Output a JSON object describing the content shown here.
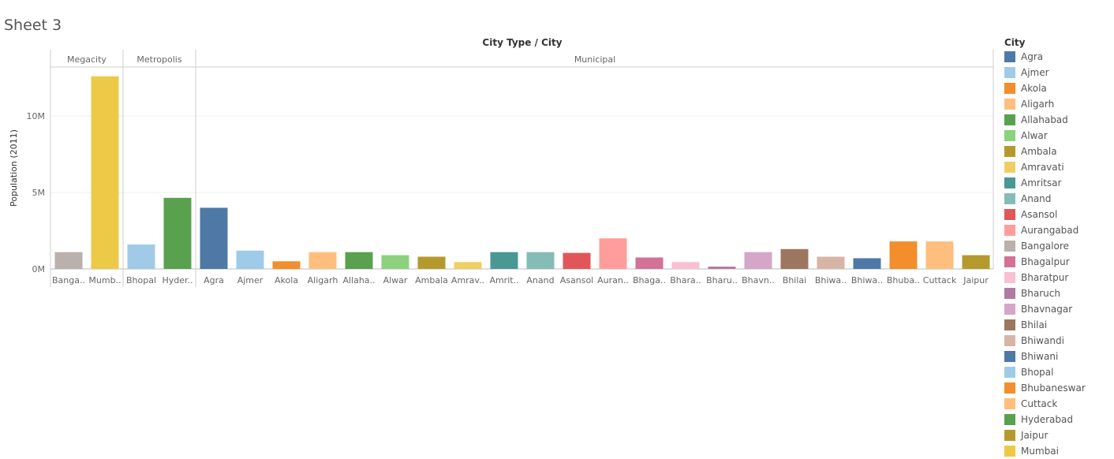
{
  "sheet": {
    "title": "Sheet 3"
  },
  "chart_data": {
    "type": "bar",
    "title": "",
    "header": "City Type / City",
    "ylabel": "Population (2011)",
    "ylim": [
      0,
      13000000
    ],
    "yticks": [
      0,
      5000000,
      10000000
    ],
    "ytick_labels": [
      "0M",
      "5M",
      "10M"
    ],
    "gridlines": true,
    "legend": {
      "title": "City",
      "placement": "right"
    },
    "groups": [
      {
        "name": "Megacity",
        "bars": [
          {
            "label": "Banga..",
            "city": "Bangalore",
            "value": 1100000,
            "color": "#bab0ac"
          },
          {
            "label": "Mumb..",
            "city": "Mumbai",
            "value": 12600000,
            "color": "#edc948"
          }
        ]
      },
      {
        "name": "Metropolis",
        "bars": [
          {
            "label": "Bhopal",
            "city": "Bhopal",
            "value": 1600000,
            "color": "#a0cbe8"
          },
          {
            "label": "Hyder..",
            "city": "Hyderabad",
            "value": 4650000,
            "color": "#59a14f"
          }
        ]
      },
      {
        "name": "Municipal",
        "bars": [
          {
            "label": "Agra",
            "city": "Agra",
            "value": 4000000,
            "color": "#4e79a7"
          },
          {
            "label": "Ajmer",
            "city": "Ajmer",
            "value": 1200000,
            "color": "#a0cbe8"
          },
          {
            "label": "Akola",
            "city": "Akola",
            "value": 500000,
            "color": "#f28e2b"
          },
          {
            "label": "Aligarh",
            "city": "Aligarh",
            "value": 1100000,
            "color": "#ffbe7d"
          },
          {
            "label": "Allaha..",
            "city": "Allahabad",
            "value": 1100000,
            "color": "#59a14f"
          },
          {
            "label": "Alwar",
            "city": "Alwar",
            "value": 900000,
            "color": "#8cd17d"
          },
          {
            "label": "Ambala",
            "city": "Ambala",
            "value": 800000,
            "color": "#b6992d"
          },
          {
            "label": "Amrav..",
            "city": "Amravati",
            "value": 450000,
            "color": "#f1ce63"
          },
          {
            "label": "Amrit..",
            "city": "Amritsar",
            "value": 1100000,
            "color": "#499894"
          },
          {
            "label": "Anand",
            "city": "Anand",
            "value": 1100000,
            "color": "#86bcb6"
          },
          {
            "label": "Asansol",
            "city": "Asansol",
            "value": 1050000,
            "color": "#e15759"
          },
          {
            "label": "Auran..",
            "city": "Aurangabad",
            "value": 2000000,
            "color": "#ff9d9a"
          },
          {
            "label": "Bhaga..",
            "city": "Bhagalpur",
            "value": 750000,
            "color": "#d37295"
          },
          {
            "label": "Bhara..",
            "city": "Bharatpur",
            "value": 450000,
            "color": "#fabfd2"
          },
          {
            "label": "Bharu..",
            "city": "Bharuch",
            "value": 150000,
            "color": "#b07aa1"
          },
          {
            "label": "Bhavn..",
            "city": "Bhavnagar",
            "value": 1100000,
            "color": "#d4a6c8"
          },
          {
            "label": "Bhilai",
            "city": "Bhilai",
            "value": 1300000,
            "color": "#9d7660"
          },
          {
            "label": "Bhiwa..",
            "city": "Bhiwandi",
            "value": 800000,
            "color": "#d7b5a6"
          },
          {
            "label": "Bhiwa..",
            "city": "Bhiwani",
            "value": 700000,
            "color": "#4e79a7"
          },
          {
            "label": "Bhuba..",
            "city": "Bhubaneswar",
            "value": 1800000,
            "color": "#f28e2b"
          },
          {
            "label": "Cuttack",
            "city": "Cuttack",
            "value": 1800000,
            "color": "#ffbe7d"
          },
          {
            "label": "Jaipur",
            "city": "Jaipur",
            "value": 900000,
            "color": "#b6992d"
          }
        ]
      }
    ],
    "legend_entries": [
      {
        "name": "Agra",
        "color": "#4e79a7"
      },
      {
        "name": "Ajmer",
        "color": "#a0cbe8"
      },
      {
        "name": "Akola",
        "color": "#f28e2b"
      },
      {
        "name": "Aligarh",
        "color": "#ffbe7d"
      },
      {
        "name": "Allahabad",
        "color": "#59a14f"
      },
      {
        "name": "Alwar",
        "color": "#8cd17d"
      },
      {
        "name": "Ambala",
        "color": "#b6992d"
      },
      {
        "name": "Amravati",
        "color": "#f1ce63"
      },
      {
        "name": "Amritsar",
        "color": "#499894"
      },
      {
        "name": "Anand",
        "color": "#86bcb6"
      },
      {
        "name": "Asansol",
        "color": "#e15759"
      },
      {
        "name": "Aurangabad",
        "color": "#ff9d9a"
      },
      {
        "name": "Bangalore",
        "color": "#bab0ac"
      },
      {
        "name": "Bhagalpur",
        "color": "#d37295"
      },
      {
        "name": "Bharatpur",
        "color": "#fabfd2"
      },
      {
        "name": "Bharuch",
        "color": "#b07aa1"
      },
      {
        "name": "Bhavnagar",
        "color": "#d4a6c8"
      },
      {
        "name": "Bhilai",
        "color": "#9d7660"
      },
      {
        "name": "Bhiwandi",
        "color": "#d7b5a6"
      },
      {
        "name": "Bhiwani",
        "color": "#4e79a7"
      },
      {
        "name": "Bhopal",
        "color": "#a0cbe8"
      },
      {
        "name": "Bhubaneswar",
        "color": "#f28e2b"
      },
      {
        "name": "Cuttack",
        "color": "#ffbe7d"
      },
      {
        "name": "Hyderabad",
        "color": "#59a14f"
      },
      {
        "name": "Jaipur",
        "color": "#b6992d"
      },
      {
        "name": "Mumbai",
        "color": "#edc948"
      }
    ]
  }
}
